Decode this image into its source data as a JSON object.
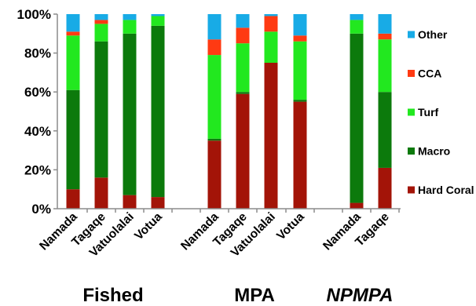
{
  "chart_data": {
    "type": "bar",
    "stacked": true,
    "normalized": true,
    "ylim": [
      0,
      100
    ],
    "yticks": [
      "0%",
      "20%",
      "40%",
      "60%",
      "80%",
      "100%"
    ],
    "grid": false,
    "legend_position": "right",
    "groups": [
      {
        "label": "Fished",
        "italic": false,
        "categories": [
          "Namada",
          "Tagaqe",
          "Vatuolalai",
          "Votua"
        ]
      },
      {
        "label": "MPA",
        "italic": false,
        "categories": [
          "Namada",
          "Tagaqe",
          "Vatuolalai",
          "Votua"
        ]
      },
      {
        "label": "NPMPA",
        "italic": true,
        "categories": [
          "Namada",
          "Tagaqe"
        ]
      }
    ],
    "series": [
      {
        "name": "Hard Coral",
        "color": "#a31408",
        "values": [
          10,
          16,
          7,
          6,
          35,
          59,
          75,
          55,
          3,
          21
        ]
      },
      {
        "name": "Macro",
        "color": "#0c7a0c",
        "values": [
          51,
          70,
          83,
          88,
          1,
          1,
          0,
          1,
          87,
          39
        ]
      },
      {
        "name": "Turf",
        "color": "#22e81f",
        "values": [
          28,
          9,
          7,
          5,
          43,
          25,
          16,
          30,
          7,
          27
        ]
      },
      {
        "name": "CCA",
        "color": "#ff3a12",
        "values": [
          2,
          2,
          0,
          0,
          8,
          8,
          8,
          3,
          0,
          3
        ]
      },
      {
        "name": "Other",
        "color": "#18abe6",
        "values": [
          9,
          3,
          3,
          1,
          13,
          7,
          1,
          11,
          3,
          10
        ]
      }
    ]
  }
}
